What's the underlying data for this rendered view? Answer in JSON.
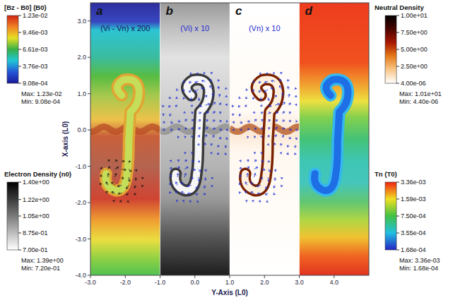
{
  "chart_data": {
    "type": "heatmap",
    "xlabel": "Y-Axis (L0)",
    "ylabel": "X-axis (L0)",
    "xlim": [
      -3,
      5
    ],
    "ylim": [
      -4,
      3.5
    ],
    "xticks": [
      {
        "value": -3,
        "label": "-3.0"
      },
      {
        "value": -2,
        "label": "-2.0"
      },
      {
        "value": -1,
        "label": "-1.0"
      },
      {
        "value": 0,
        "label": "0.0"
      },
      {
        "value": 1,
        "label": "1.0"
      },
      {
        "value": 2,
        "label": "2.0"
      },
      {
        "value": 3,
        "label": "3.0"
      },
      {
        "value": 4,
        "label": "4.0"
      }
    ],
    "yticks": [
      {
        "value": 3,
        "label": "3.0"
      },
      {
        "value": 2,
        "label": "2.0"
      },
      {
        "value": 1,
        "label": "1.0"
      },
      {
        "value": 0,
        "label": "0.0"
      },
      {
        "value": -1,
        "label": "-1.0"
      },
      {
        "value": -2,
        "label": "-2.0"
      },
      {
        "value": -3,
        "label": "-3.0"
      },
      {
        "value": -4,
        "label": "-4.0"
      }
    ],
    "panels": [
      {
        "label": "a",
        "title": "(Vi - Vn) x 200",
        "xlim": [
          -3,
          -1
        ]
      },
      {
        "label": "b",
        "title": "(Vi) x 10",
        "xlim": [
          -1,
          1
        ]
      },
      {
        "label": "c",
        "title": "(Vn) x 10",
        "xlim": [
          1,
          3
        ]
      },
      {
        "label": "d",
        "xlim": [
          3,
          5
        ]
      }
    ],
    "max_text": "Max:",
    "min_text": "Min:",
    "colorbars": [
      {
        "title": "[Bz - B0] (B0)",
        "range": [
          0.000908,
          0.0123
        ],
        "ticks": [
          {
            "value": 0.0123,
            "label": "1.23e-02"
          },
          {
            "value": 0.00946,
            "label": "9.46e-03"
          },
          {
            "value": 0.00661,
            "label": "6.61e-03"
          },
          {
            "value": 0.00376,
            "label": "3.76e-03"
          },
          {
            "value": 0.000908,
            "label": "9.08e-04"
          }
        ],
        "max": {
          "value": 0.0123,
          "label": "1.23e-02"
        },
        "min": {
          "value": 0.000908,
          "label": "9.08e-04"
        }
      },
      {
        "title": "Electron Density (n0)",
        "range": [
          0.7,
          1.4
        ],
        "ticks": [
          {
            "value": 1.4,
            "label": "1.40e+00"
          },
          {
            "value": 1.22,
            "label": "1.22e+00"
          },
          {
            "value": 1.05,
            "label": "1.05e+00"
          },
          {
            "value": 0.875,
            "label": "8.75e-01"
          },
          {
            "value": 0.7,
            "label": "7.00e-01"
          }
        ],
        "max": {
          "value": 1.39,
          "label": "1.39e+00"
        },
        "min": {
          "value": 0.72,
          "label": "7.20e-01"
        }
      },
      {
        "title": "Neutral Density",
        "range": [
          4e-06,
          10
        ],
        "ticks": [
          {
            "value": 10,
            "label": "1.00e+01"
          },
          {
            "value": 7.5,
            "label": "7.50e+00"
          },
          {
            "value": 5,
            "label": "5.00e+00"
          },
          {
            "value": 2.5,
            "label": "2.50e+00"
          },
          {
            "value": 4e-06,
            "label": "4.00e-06"
          }
        ],
        "max": {
          "value": 10.1,
          "label": "1.01e+01"
        },
        "min": {
          "value": 4.4e-06,
          "label": "4.40e-06"
        }
      },
      {
        "title": "Tn (T0)",
        "range": [
          0.000168,
          0.00336
        ],
        "log": true,
        "ticks": [
          {
            "value": 0.00336,
            "label": "3.36e-03"
          },
          {
            "value": 0.00159,
            "label": "1.59e-03"
          },
          {
            "value": 0.00075,
            "label": "7.50e-04"
          },
          {
            "value": 0.000355,
            "label": "3.55e-04"
          },
          {
            "value": 0.000168,
            "label": "1.68e-04"
          }
        ],
        "max": {
          "value": 0.00336,
          "label": "3.36e-03"
        },
        "min": {
          "value": 0.000168,
          "label": "1.68e-04"
        }
      }
    ]
  }
}
